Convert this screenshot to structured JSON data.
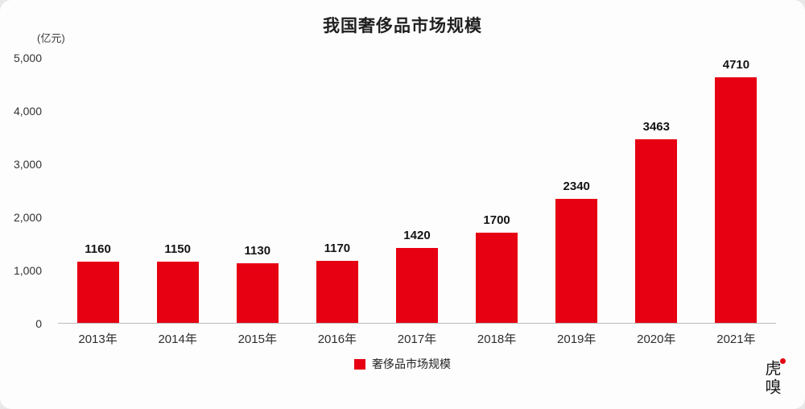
{
  "header": {
    "title": "我国奢侈品市场规模",
    "unit_label": "(亿元)"
  },
  "chart_data": {
    "type": "bar",
    "title": "我国奢侈品市场规模",
    "xlabel": "",
    "ylabel": "(亿元)",
    "categories": [
      "2013年",
      "2014年",
      "2015年",
      "2016年",
      "2017年",
      "2018年",
      "2019年",
      "2020年",
      "2021年"
    ],
    "values": [
      1160,
      1150,
      1130,
      1170,
      1420,
      1700,
      2340,
      3463,
      4710
    ],
    "ylim": [
      0,
      5000
    ],
    "yticks": [
      0,
      1000,
      2000,
      3000,
      4000,
      5000
    ],
    "ytick_labels": [
      "0",
      "1,000",
      "2,000",
      "3,000",
      "4,000",
      "5,000"
    ],
    "bar_color": "#e60012",
    "grid": false,
    "legend_position": "bottom"
  },
  "legend": {
    "label": "奢侈品市场规模",
    "swatch_color": "#e60012"
  },
  "watermark": {
    "text": "虎嗅"
  },
  "colors": {
    "accent_red": "#e60012",
    "text_dark": "#1f1f1f",
    "axis_line": "#b9b9b9",
    "background": "#fdfdfd"
  }
}
